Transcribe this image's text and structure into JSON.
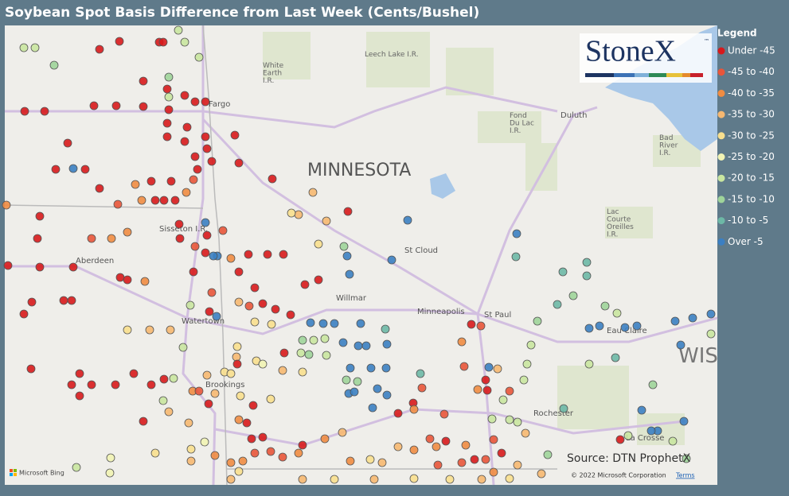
{
  "title": "Soybean Spot Basis Difference from Last Week (Cents/Bushel)",
  "legend": {
    "title": "Legend",
    "items": [
      {
        "label": "Under -45",
        "color": "#d7191c"
      },
      {
        "label": "-45 to -40",
        "color": "#e8553a"
      },
      {
        "label": "-40 to -35",
        "color": "#f08c42"
      },
      {
        "label": "-35 to -30",
        "color": "#f6b871"
      },
      {
        "label": "-30 to -25",
        "color": "#f8df8e"
      },
      {
        "label": "-25 to -20",
        "color": "#f1f3b4"
      },
      {
        "label": "-20 to -15",
        "color": "#c9e6a0"
      },
      {
        "label": "-15 to -10",
        "color": "#9fd49a"
      },
      {
        "label": "-10 to -5",
        "color": "#6db8a6"
      },
      {
        "label": "Over -5",
        "color": "#3b7fc2"
      }
    ]
  },
  "logo": {
    "text": "StoneX",
    "mark": "™"
  },
  "map_labels": [
    {
      "lines": [
        "MINNESOTA"
      ]
    },
    {
      "lines": [
        "St Cloud"
      ]
    },
    {
      "lines": [
        "Minneapolis"
      ]
    },
    {
      "lines": [
        "St Paul"
      ]
    },
    {
      "lines": [
        "Willmar"
      ]
    },
    {
      "lines": [
        "Aberdeen"
      ]
    },
    {
      "lines": [
        "Watertown"
      ]
    },
    {
      "lines": [
        "Brookings"
      ]
    },
    {
      "lines": [
        "Rochester"
      ]
    },
    {
      "lines": [
        "La Crosse"
      ]
    },
    {
      "lines": [
        "Eau Claire"
      ]
    },
    {
      "lines": [
        "Duluth"
      ]
    },
    {
      "lines": [
        "Fargo"
      ]
    },
    {
      "lines": [
        "Sisseton I.R."
      ]
    },
    {
      "lines": [
        "White",
        "Earth",
        "I.R."
      ]
    },
    {
      "lines": [
        "Leech Lake I.R."
      ]
    },
    {
      "lines": [
        "Fond",
        "Du Lac",
        "I.R."
      ]
    },
    {
      "lines": [
        "Bad",
        "River",
        "I.R."
      ]
    },
    {
      "lines": [
        "Lac",
        "Courte",
        "Oreilles",
        "I.R."
      ]
    },
    {
      "lines": [
        "WIS"
      ]
    }
  ],
  "source": "Source: DTN ProphetX",
  "copyright": "© 2022 Microsoft Corporation",
  "terms": "Terms",
  "bing": "Microsoft Bing"
}
